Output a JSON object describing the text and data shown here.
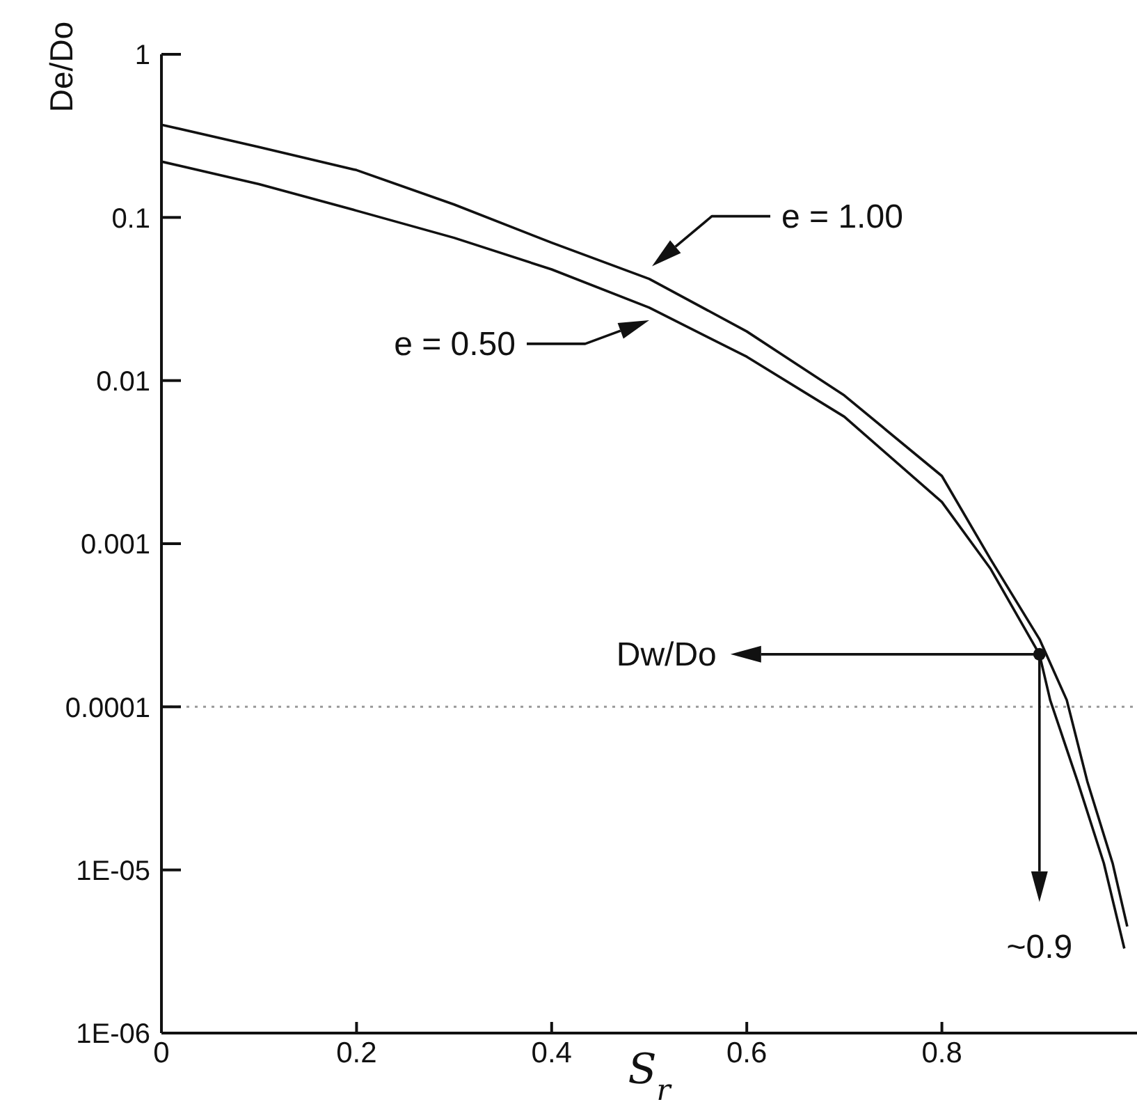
{
  "chart_data": {
    "type": "line",
    "xlabel": "S$_{r}$",
    "ylabel": "De/Do",
    "log": "y",
    "xlim": [
      0,
      1
    ],
    "ylim": [
      1e-06,
      1
    ],
    "xticks": [
      0,
      0.2,
      0.4,
      0.6,
      0.8
    ],
    "yticks": [
      1,
      0.1,
      0.01,
      0.001,
      0.0001,
      {
        "value": 1e-05,
        "label": "1E-05"
      },
      {
        "value": 1e-06,
        "label": "1E-06"
      }
    ],
    "marker": "none",
    "line_style": "solid",
    "series": [
      {
        "name": "e = 1.00",
        "color": "#111111",
        "x": [
          0,
          0.1,
          0.2,
          0.3,
          0.4,
          0.5,
          0.6,
          0.7,
          0.8,
          0.85,
          0.9,
          0.928,
          0.949,
          0.975,
          0.99
        ],
        "values": [
          0.37,
          0.27,
          0.195,
          0.12,
          0.07,
          0.042,
          0.02,
          0.0081,
          0.0026,
          0.0008,
          0.00026,
          0.00011,
          3.5e-05,
          1.1e-05,
          4.5e-06
        ]
      },
      {
        "name": "e = 0.50",
        "color": "#111111",
        "x": [
          0,
          0.1,
          0.2,
          0.3,
          0.4,
          0.5,
          0.6,
          0.7,
          0.8,
          0.85,
          0.9,
          0.911,
          0.939,
          0.966,
          0.987
        ],
        "values": [
          0.22,
          0.16,
          0.11,
          0.075,
          0.048,
          0.028,
          0.014,
          0.006,
          0.0018,
          0.0007,
          0.00021,
          0.00011,
          3.5e-05,
          1.1e-05,
          3.3e-06
        ]
      }
    ],
    "ref_lines": [
      {
        "axis": "y",
        "value": 0.0001,
        "color": "#999999",
        "line_style": "dotted"
      }
    ],
    "annotations": [
      "Dw/Do",
      "~0.9"
    ]
  }
}
